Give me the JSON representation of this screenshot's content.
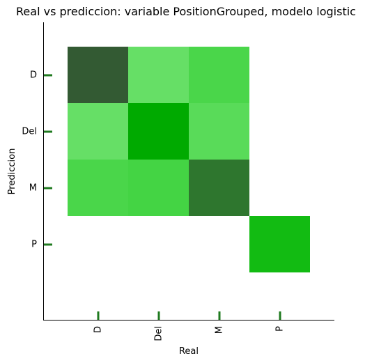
{
  "chart_data": {
    "type": "heatmap",
    "title": "Real vs prediccion: variable PositionGrouped, modelo logistic",
    "xlabel": "Real",
    "ylabel": "Prediccion",
    "x_categories": [
      "D",
      "Del",
      "M",
      "P"
    ],
    "y_categories": [
      "D",
      "Del",
      "M",
      "P"
    ],
    "cells": [
      {
        "real": "D",
        "pred": "D",
        "color": "#335a33"
      },
      {
        "real": "Del",
        "pred": "D",
        "color": "#66df66"
      },
      {
        "real": "M",
        "pred": "D",
        "color": "#4ad64a"
      },
      {
        "real": "D",
        "pred": "Del",
        "color": "#66df66"
      },
      {
        "real": "Del",
        "pred": "Del",
        "color": "#00aa00"
      },
      {
        "real": "M",
        "pred": "Del",
        "color": "#59db59"
      },
      {
        "real": "D",
        "pred": "M",
        "color": "#4ad64a"
      },
      {
        "real": "Del",
        "pred": "M",
        "color": "#44d444"
      },
      {
        "real": "M",
        "pred": "M",
        "color": "#2e762e"
      },
      {
        "real": "P",
        "pred": "P",
        "color": "#12bb12"
      }
    ],
    "tick_color": "#1f7a1f",
    "grid": false
  }
}
